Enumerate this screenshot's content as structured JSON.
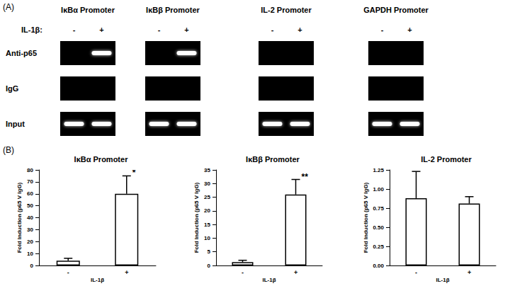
{
  "panel_a": {
    "label": "(A)",
    "treatment_label": "IL-1β:",
    "lanes": [
      "-",
      "+"
    ],
    "rows": [
      "Anti-p65",
      "IgG",
      "Input"
    ],
    "gels": [
      {
        "title": "IκBα Promoter",
        "bands": [
          [
            false,
            true
          ],
          [
            false,
            false
          ],
          [
            true,
            true
          ]
        ]
      },
      {
        "title": "IκBβ Promoter",
        "bands": [
          [
            false,
            true
          ],
          [
            false,
            false
          ],
          [
            true,
            true
          ]
        ]
      },
      {
        "title": "IL-2 Promoter",
        "bands": [
          [
            false,
            false
          ],
          [
            false,
            false
          ],
          [
            true,
            true
          ]
        ]
      },
      {
        "title": "GAPDH Promoter",
        "bands": [
          [
            false,
            false
          ],
          [
            false,
            false
          ],
          [
            true,
            true
          ]
        ]
      }
    ]
  },
  "panel_b_label": "(B)",
  "chart_data": [
    {
      "type": "bar",
      "title": "IκBα Promoter",
      "x_label": "IL-1β",
      "y_label": "Fold Induction (p65 V IgG)",
      "categories": [
        "-",
        "+"
      ],
      "values": [
        4,
        60
      ],
      "errors": [
        2,
        15
      ],
      "color": "#ffffff",
      "annotations": [
        {
          "category": "+",
          "text": "*"
        }
      ],
      "ylim": [
        0,
        80
      ],
      "yticks": [
        0,
        10,
        20,
        30,
        40,
        50,
        60,
        70,
        80
      ],
      "grid": false
    },
    {
      "type": "bar",
      "title": "IκBβ Promoter",
      "x_label": "IL-1β",
      "y_label": "Fold Induction (p65 V IgG)",
      "categories": [
        "-",
        "+"
      ],
      "values": [
        1.2,
        26
      ],
      "errors": [
        0.7,
        5.5
      ],
      "color": "#ffffff",
      "annotations": [
        {
          "category": "+",
          "text": "**"
        }
      ],
      "ylim": [
        0,
        35
      ],
      "yticks": [
        0,
        5,
        10,
        15,
        20,
        25,
        30,
        35
      ],
      "grid": false
    },
    {
      "type": "bar",
      "title": "IL-2 Promoter",
      "x_label": "IL-1β",
      "y_label": "Fold Induction (p65 V IgG)",
      "categories": [
        "-",
        "+"
      ],
      "values": [
        0.88,
        0.81
      ],
      "errors": [
        0.35,
        0.09
      ],
      "color": "#ffffff",
      "annotations": [],
      "ylim": [
        0,
        1.25
      ],
      "yticks": [
        {
          "value": 0,
          "label": "0.00"
        },
        0.25,
        {
          "value": 0.5,
          "label": "0.50"
        },
        0.75,
        {
          "value": 1,
          "label": "1.00"
        },
        1.25
      ],
      "grid": false
    }
  ]
}
